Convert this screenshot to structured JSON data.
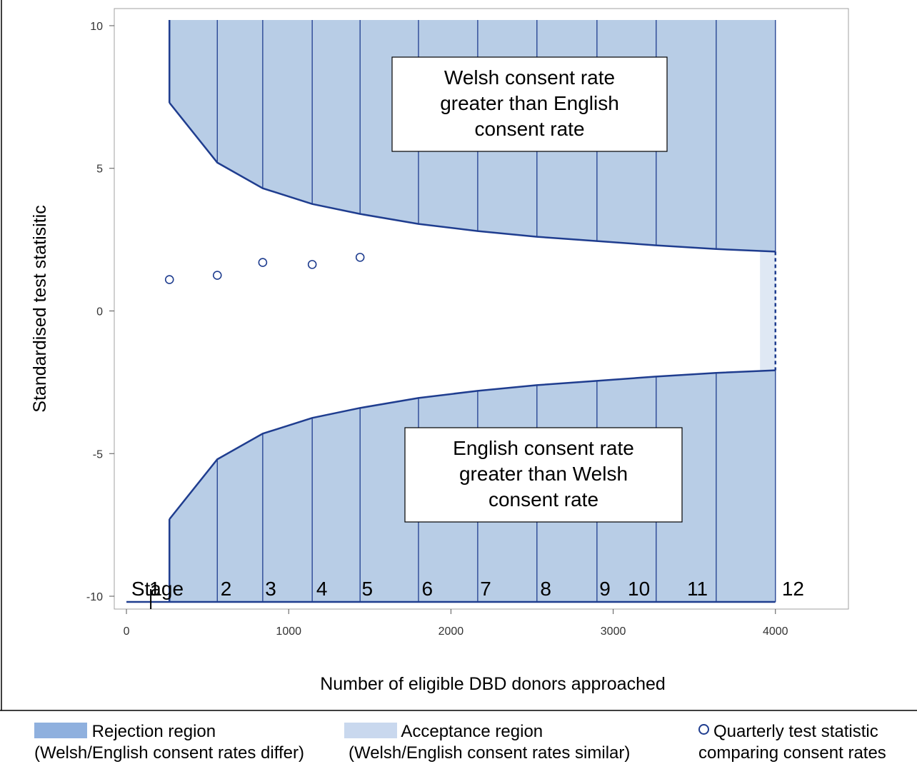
{
  "chart_data": {
    "type": "line",
    "xlabel": "Number of eligible DBD donors approached",
    "ylabel": "Standardised test statisitic",
    "xlim": [
      -75,
      4450
    ],
    "ylim": [
      -10.45,
      10.6
    ],
    "xticks": [
      0,
      1000,
      2000,
      3000,
      4000
    ],
    "yticks": [
      -10,
      -5,
      0,
      5,
      10
    ],
    "stage_x": [
      265,
      560,
      840,
      1145,
      1440,
      1800,
      2165,
      2530,
      2900,
      3265,
      3635,
      4000
    ],
    "upper_boundary": [
      10.2,
      7.3,
      5.2,
      4.3,
      3.75,
      3.4,
      3.05,
      2.8,
      2.6,
      2.45,
      2.3,
      2.17,
      2.08
    ],
    "lower_boundary": [
      -10.2,
      -7.3,
      -5.2,
      -4.3,
      -3.75,
      -3.4,
      -3.05,
      -2.8,
      -2.6,
      -2.45,
      -2.3,
      -2.17,
      -2.08
    ],
    "acceptance_band": {
      "x": [
        3905,
        4000
      ],
      "y": [
        -2.08,
        2.08
      ]
    },
    "quarterly_points": [
      {
        "x": 265,
        "y": 1.1
      },
      {
        "x": 560,
        "y": 1.25
      },
      {
        "x": 840,
        "y": 1.7
      },
      {
        "x": 1145,
        "y": 1.63
      },
      {
        "x": 1440,
        "y": 1.88
      }
    ],
    "stage_labels": [
      {
        "text": "Stage",
        "x": 30
      },
      {
        "text": "1",
        "x": 140
      },
      {
        "text": "2",
        "x": 580
      },
      {
        "text": "3",
        "x": 855
      },
      {
        "text": "4",
        "x": 1170
      },
      {
        "text": "5",
        "x": 1450
      },
      {
        "text": "6",
        "x": 1820
      },
      {
        "text": "7",
        "x": 2180
      },
      {
        "text": "8",
        "x": 2550
      },
      {
        "text": "9",
        "x": 2915
      },
      {
        "text": "10",
        "x": 3090
      },
      {
        "text": "11",
        "x": 3455
      },
      {
        "text": "12",
        "x": 4040
      }
    ],
    "annotations": [
      {
        "lines": [
          "Welsh consent rate",
          "greater than English",
          "consent rate"
        ],
        "anchor": "upper"
      },
      {
        "lines": [
          "English consent rate",
          "greater than Welsh",
          "consent rate"
        ],
        "anchor": "lower"
      }
    ],
    "colors": {
      "rejection_fill": "#b8cde6",
      "acceptance_fill": "#dfe8f4",
      "boundary_line": "#1f3d8f",
      "stage_line": "#1f3d8f",
      "point": "#1f3d8f",
      "legend_rejection": "#8fb0de",
      "legend_acceptance": "#c9d8ee"
    }
  },
  "legend": {
    "rejection_label": "Rejection region",
    "rejection_sub": "(Welsh/English consent rates differ)",
    "acceptance_label": "Acceptance region",
    "acceptance_sub": "(Welsh/English consent rates similar)",
    "points_label": "Quarterly test statistic",
    "points_sub": "comparing consent rates"
  }
}
